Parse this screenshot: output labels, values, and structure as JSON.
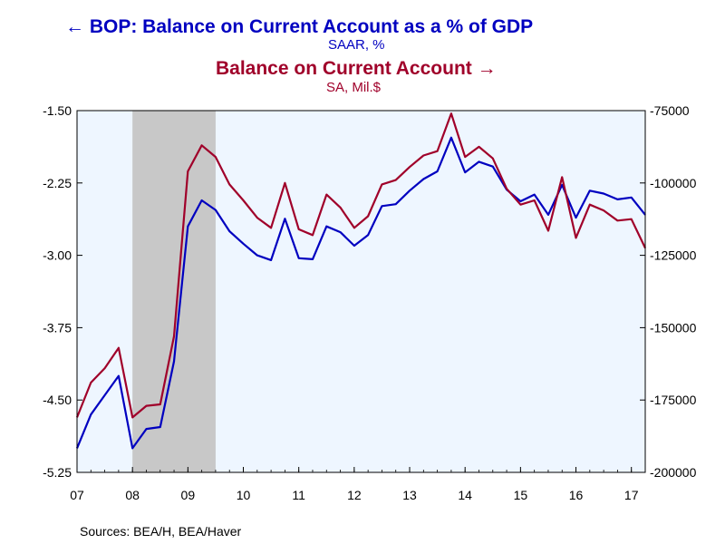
{
  "legend": {
    "left_series": "BOP: Balance on Current Account as a % of GDP",
    "left_unit": "SAAR, %",
    "right_series": "Balance on Current Account",
    "right_unit": "SA, Mil.$"
  },
  "source": "Sources:  BEA/H, BEA/Haver",
  "colors": {
    "left_series": "#0000c0",
    "right_series": "#a0002a",
    "plot_bg": "#eef6ff",
    "recession": "#c8c8c8"
  },
  "chart_data": {
    "type": "line",
    "x_tick_labels": [
      "07",
      "08",
      "09",
      "10",
      "11",
      "12",
      "13",
      "14",
      "15",
      "16",
      "17"
    ],
    "x_range": [
      2007.0,
      2017.25
    ],
    "recession": [
      2008.0,
      2009.5
    ],
    "left_axis": {
      "ylim": [
        -5.25,
        -1.5
      ],
      "tick_labels": [
        "-1.50",
        "-2.25",
        "-3.00",
        "-3.75",
        "-4.50",
        "-5.25"
      ],
      "tick_values": [
        -1.5,
        -2.25,
        -3.0,
        -3.75,
        -4.5,
        -5.25
      ]
    },
    "right_axis": {
      "ylim": [
        -200000,
        -75000
      ],
      "tick_labels": [
        "-75000",
        "-100000",
        "-125000",
        "-150000",
        "-175000",
        "-200000"
      ],
      "tick_values": [
        -75000,
        -100000,
        -125000,
        -150000,
        -175000,
        -200000
      ]
    },
    "x": [
      2007.0,
      2007.25,
      2007.5,
      2007.75,
      2008.0,
      2008.25,
      2008.5,
      2008.75,
      2009.0,
      2009.25,
      2009.5,
      2009.75,
      2010.0,
      2010.25,
      2010.5,
      2010.75,
      2011.0,
      2011.25,
      2011.5,
      2011.75,
      2012.0,
      2012.25,
      2012.5,
      2012.75,
      2013.0,
      2013.25,
      2013.5,
      2013.75,
      2014.0,
      2014.25,
      2014.5,
      2014.75,
      2015.0,
      2015.25,
      2015.5,
      2015.75,
      2016.0,
      2016.25,
      2016.5,
      2016.75,
      2017.0,
      2017.25
    ],
    "series": [
      {
        "name": "BOP: Balance on Current Account as a % of GDP",
        "axis": "left",
        "values": [
          -5.0,
          -4.65,
          -4.45,
          -4.25,
          -5.0,
          -4.8,
          -4.78,
          -4.1,
          -2.7,
          -2.43,
          -2.53,
          -2.75,
          -2.88,
          -3.0,
          -3.05,
          -2.62,
          -3.03,
          -3.04,
          -2.7,
          -2.76,
          -2.9,
          -2.79,
          -2.49,
          -2.47,
          -2.33,
          -2.21,
          -2.13,
          -1.78,
          -2.14,
          -2.03,
          -2.08,
          -2.32,
          -2.44,
          -2.37,
          -2.58,
          -2.27,
          -2.61,
          -2.33,
          -2.36,
          -2.42,
          -2.4,
          -2.58
        ]
      },
      {
        "name": "Balance on Current Account",
        "axis": "right",
        "values": [
          -181000,
          -169000,
          -164000,
          -157000,
          -181000,
          -177000,
          -176500,
          -153000,
          -96000,
          -87000,
          -91000,
          -100500,
          -106000,
          -112000,
          -115500,
          -100000,
          -116000,
          -118000,
          -104000,
          -108500,
          -115500,
          -111500,
          -100500,
          -99000,
          -94500,
          -90500,
          -89000,
          -76000,
          -91000,
          -87500,
          -91500,
          -102000,
          -107500,
          -106000,
          -116500,
          -98000,
          -119000,
          -107500,
          -109500,
          -113000,
          -112500,
          -122500
        ]
      }
    ]
  }
}
